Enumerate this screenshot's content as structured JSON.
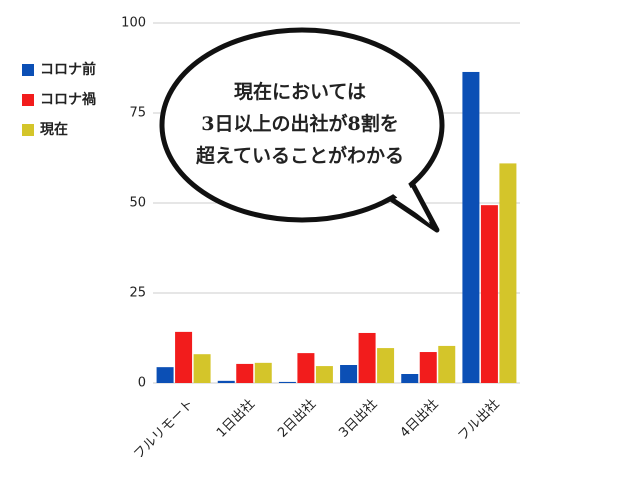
{
  "chart_data": {
    "type": "bar",
    "categories": [
      "フルリモート",
      "1日出社",
      "2日出社",
      "3日出社",
      "4日出社",
      "フル出社"
    ],
    "series": [
      {
        "name": "コロナ前",
        "color": "#0b4fb5",
        "values": [
          4.4,
          0.6,
          0.3,
          5,
          2.5,
          86.4
        ]
      },
      {
        "name": "コロナ禍",
        "color": "#f21c1c",
        "values": [
          14.2,
          5.3,
          8.3,
          13.9,
          8.6,
          49.4
        ]
      },
      {
        "name": "現在",
        "color": "#d4c52a",
        "values": [
          8,
          5.6,
          4.7,
          9.7,
          10.3,
          61
        ]
      }
    ],
    "ylim": [
      0,
      100
    ],
    "yticks": [
      0,
      25,
      50,
      75,
      100
    ],
    "grid": true,
    "annotation": [
      "現在においては",
      "3日以上の出社が8割を",
      "超えていることがわかる"
    ]
  }
}
